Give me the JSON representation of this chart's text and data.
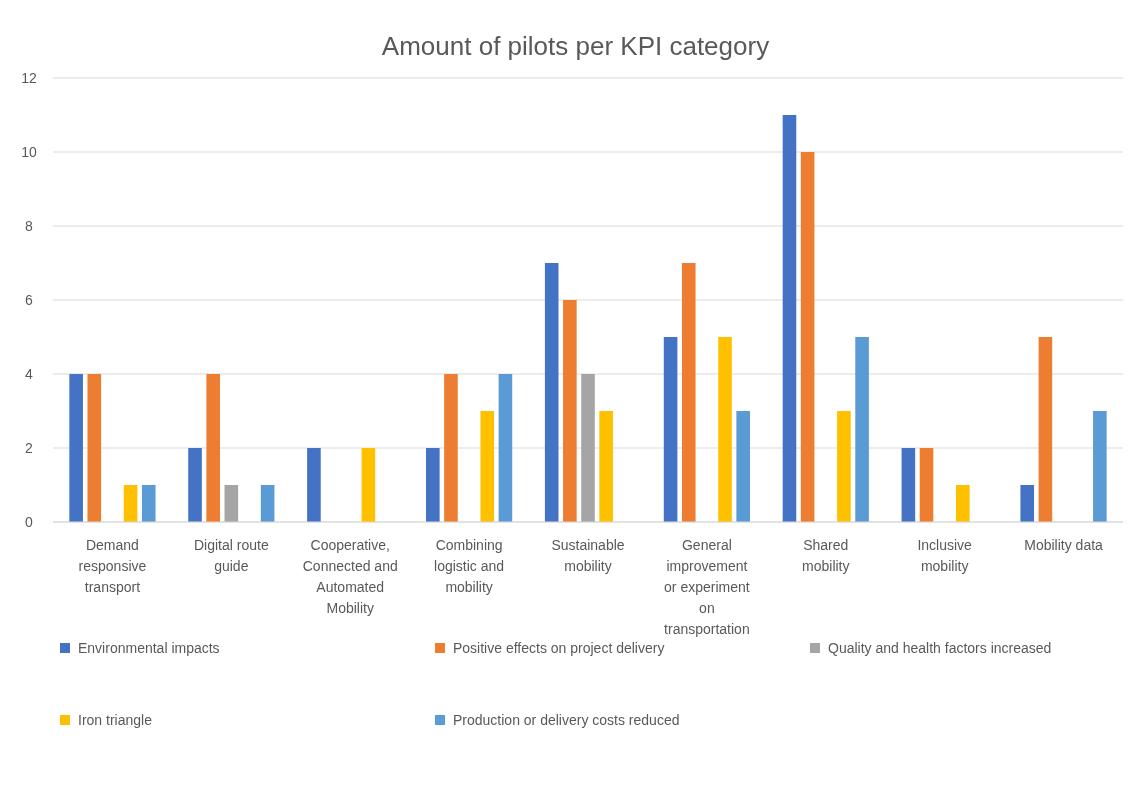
{
  "chart_data": {
    "type": "bar",
    "title": "Amount of pilots per KPI category",
    "categories": [
      "Demand responsive transport",
      "Digital route guide",
      "Cooperative, Connected and Automated Mobility",
      "Combining logistic and mobility",
      "Sustainable mobility",
      "General improvement or experiment on transportation",
      "Shared mobility",
      "Inclusive mobility",
      "Mobility data"
    ],
    "series": [
      {
        "name": "Environmental impacts",
        "color": "#4472c4",
        "values": [
          4,
          2,
          2,
          2,
          7,
          5,
          11,
          2,
          1
        ]
      },
      {
        "name": "Positive effects on project delivery",
        "color": "#ed7d31",
        "values": [
          4,
          4,
          0,
          4,
          6,
          7,
          10,
          2,
          5
        ]
      },
      {
        "name": "Quality and health factors increased",
        "color": "#a5a5a5",
        "values": [
          0,
          1,
          0,
          0,
          4,
          0,
          0,
          0,
          0
        ]
      },
      {
        "name": "Iron triangle",
        "color": "#ffc000",
        "values": [
          1,
          0,
          2,
          3,
          3,
          5,
          3,
          1,
          0
        ]
      },
      {
        "name": "Production or delivery costs reduced",
        "color": "#5b9bd5",
        "values": [
          1,
          1,
          0,
          4,
          0,
          3,
          5,
          0,
          3
        ]
      }
    ],
    "ylim": [
      0,
      12
    ],
    "yticks": [
      0,
      2,
      4,
      6,
      8,
      10,
      12
    ],
    "grid": "y",
    "legend": "bottom"
  }
}
